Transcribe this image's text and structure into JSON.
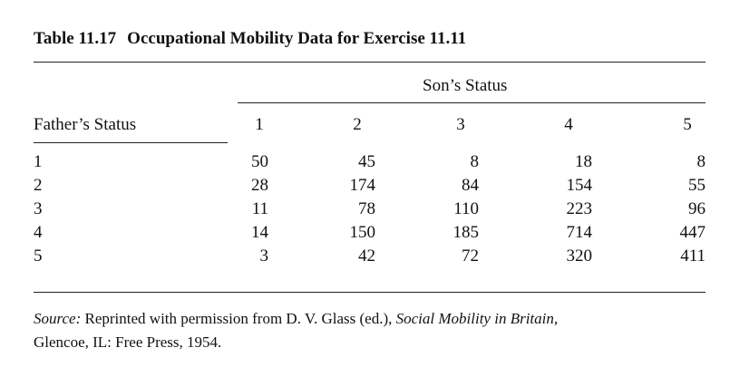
{
  "table": {
    "number": "Table 11.17",
    "title": "Occupational Mobility Data for Exercise 11.11",
    "spanner": "Son’s Status",
    "row_header": "Father’s Status",
    "columns": [
      "1",
      "2",
      "3",
      "4",
      "5"
    ],
    "rows": [
      {
        "label": "1",
        "values": [
          "50",
          "45",
          "8",
          "18",
          "8"
        ]
      },
      {
        "label": "2",
        "values": [
          "28",
          "174",
          "84",
          "154",
          "55"
        ]
      },
      {
        "label": "3",
        "values": [
          "11",
          "78",
          "110",
          "223",
          "96"
        ]
      },
      {
        "label": "4",
        "values": [
          "14",
          "150",
          "185",
          "714",
          "447"
        ]
      },
      {
        "label": "5",
        "values": [
          "3",
          "42",
          "72",
          "320",
          "411"
        ]
      }
    ]
  },
  "source": {
    "label": "Source:",
    "text1": " Reprinted with permission from D. V. Glass (ed.), ",
    "book": "Social Mobility in Britain",
    "text2": ",",
    "text3": "Glencoe, IL: Free Press, 1954."
  }
}
